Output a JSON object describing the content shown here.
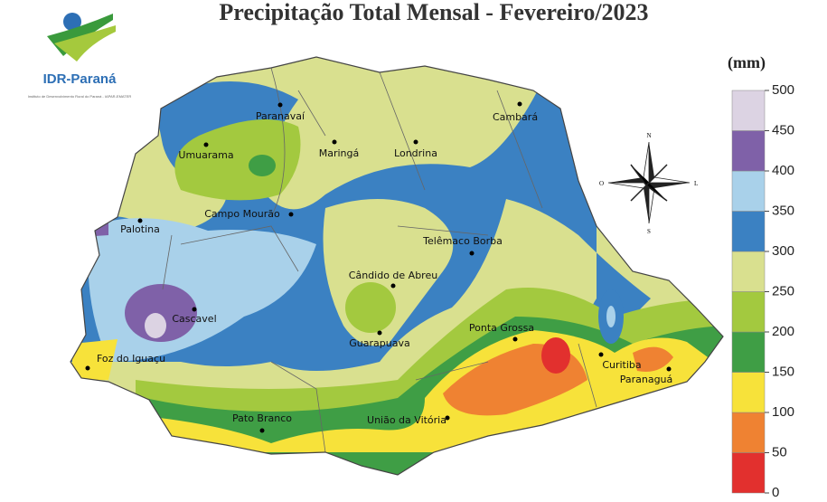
{
  "header": {
    "title": "Precipitação Total Mensal - Fevereiro/2023"
  },
  "logo": {
    "name": "IDR-Paraná",
    "subtitle": "Instituto de Desenvolvimento Rural do Paraná - IAPAR-EMATER"
  },
  "legend": {
    "unit": "(mm)",
    "ticks": [
      0,
      50,
      100,
      150,
      200,
      250,
      300,
      350,
      400,
      450,
      500
    ],
    "colors": [
      "#e2302e",
      "#ef8232",
      "#f7e23a",
      "#3f9e45",
      "#a3c93f",
      "#d9e08f",
      "#3b81c2",
      "#a9d1ea",
      "#7f61a8",
      "#dcd3e3"
    ]
  },
  "compass": {
    "north": "N",
    "south": "S",
    "east": "L",
    "west": "O"
  },
  "cities": [
    "Paranavaí",
    "Umuarama",
    "Maringá",
    "Londrina",
    "Cambará",
    "Campo Mourão",
    "Palotina",
    "Telêmaco Borba",
    "Cândido de Abreu",
    "Cascavel",
    "Guarapuava",
    "Ponta Grossa",
    "Foz do Iguaçu",
    "Curitiba",
    "Paranaguá",
    "Pato Branco",
    "União da Vitória"
  ]
}
